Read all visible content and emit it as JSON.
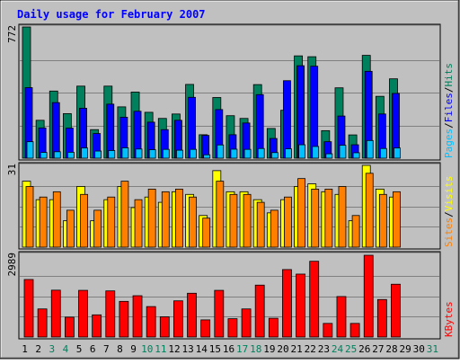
{
  "title": "Daily usage for February 2007",
  "colors": {
    "background": "#c0c0c0",
    "title": "#0000ff",
    "hits": "#00805c",
    "files": "#0000ff",
    "pages": "#00c0ff",
    "visits": "#ffff00",
    "sites": "#ff8000",
    "kbytes": "#ff0000",
    "day_label": "#000000",
    "weekend_label": "#00805c"
  },
  "chart_data": [
    {
      "type": "bar",
      "panel": "hits-files-pages",
      "ymax_label": "772",
      "ymax": 772,
      "legend": [
        {
          "text": "Pages",
          "key": "pages"
        },
        {
          "text": "/",
          "key": "sep"
        },
        {
          "text": "Files",
          "key": "files"
        },
        {
          "text": "/",
          "key": "sep"
        },
        {
          "text": "Hits",
          "key": "hits"
        }
      ],
      "categories": [
        "1",
        "2",
        "3",
        "4",
        "5",
        "6",
        "7",
        "8",
        "9",
        "10",
        "11",
        "12",
        "13",
        "14",
        "15",
        "16",
        "17",
        "18",
        "19",
        "20",
        "21",
        "22",
        "23",
        "24",
        "25",
        "26",
        "27",
        "28",
        "29",
        "30",
        "31"
      ],
      "series": [
        {
          "name": "Hits",
          "key": "hits",
          "values": [
            772,
            223,
            395,
            262,
            424,
            168,
            424,
            302,
            389,
            270,
            234,
            260,
            434,
            138,
            357,
            250,
            234,
            433,
            175,
            282,
            602,
            597,
            162,
            414,
            137,
            605,
            364,
            467,
            null,
            null,
            null
          ]
        },
        {
          "name": "Files",
          "key": "files",
          "values": [
            415,
            178,
            327,
            177,
            294,
            145,
            318,
            241,
            276,
            212,
            168,
            223,
            358,
            134,
            286,
            138,
            207,
            374,
            116,
            456,
            544,
            541,
            97,
            248,
            79,
            511,
            260,
            381,
            null,
            null,
            null
          ]
        },
        {
          "name": "Pages",
          "key": "pages",
          "values": [
            97,
            34,
            38,
            35,
            60,
            42,
            45,
            61,
            54,
            50,
            52,
            47,
            52,
            20,
            78,
            53,
            52,
            57,
            33,
            55,
            79,
            69,
            26,
            76,
            32,
            104,
            57,
            60,
            null,
            null,
            null
          ]
        }
      ]
    },
    {
      "type": "bar",
      "panel": "visits-sites",
      "ymax_label": "31",
      "ymax": 31,
      "legend": [
        {
          "text": "Sites",
          "key": "sites"
        },
        {
          "text": "/",
          "key": "sep"
        },
        {
          "text": "Visits",
          "key": "visits"
        }
      ],
      "categories": [
        "1",
        "2",
        "3",
        "4",
        "5",
        "6",
        "7",
        "8",
        "9",
        "10",
        "11",
        "12",
        "13",
        "14",
        "15",
        "16",
        "17",
        "18",
        "19",
        "20",
        "21",
        "22",
        "23",
        "24",
        "25",
        "26",
        "27",
        "28",
        "29",
        "30",
        "31"
      ],
      "series": [
        {
          "name": "Visits",
          "key": "visits",
          "values": [
            25,
            18,
            18,
            10,
            23,
            10,
            18,
            23,
            15,
            19,
            17,
            21,
            20,
            12,
            29,
            21,
            21,
            18,
            13,
            18,
            23,
            24,
            21,
            20,
            10,
            31,
            22,
            19,
            null,
            null,
            null
          ]
        },
        {
          "name": "Sites",
          "key": "sites",
          "values": [
            23,
            19,
            21,
            14,
            20,
            14,
            19,
            25,
            18,
            22,
            21,
            22,
            19,
            11,
            25,
            20,
            20,
            17,
            14,
            19,
            26,
            22,
            22,
            23,
            12,
            28,
            20,
            21,
            null,
            null,
            null
          ]
        }
      ]
    },
    {
      "type": "bar",
      "panel": "kbytes",
      "ymax_label": "2989",
      "ymax": 2989,
      "legend": [
        {
          "text": "KBytes",
          "key": "kbytes"
        }
      ],
      "categories": [
        "1",
        "2",
        "3",
        "4",
        "5",
        "6",
        "7",
        "8",
        "9",
        "10",
        "11",
        "12",
        "13",
        "14",
        "15",
        "16",
        "17",
        "18",
        "19",
        "20",
        "21",
        "22",
        "23",
        "24",
        "25",
        "26",
        "27",
        "28",
        "29",
        "30",
        "31"
      ],
      "series": [
        {
          "name": "KBytes",
          "key": "kbytes",
          "values": [
            2103,
            1027,
            1713,
            726,
            1706,
            811,
            1686,
            1303,
            1510,
            1113,
            739,
            1323,
            1600,
            627,
            1706,
            670,
            1027,
            1897,
            686,
            2466,
            2300,
            2769,
            498,
            1480,
            498,
            2989,
            1371,
            1930,
            null,
            null,
            null
          ]
        }
      ]
    }
  ],
  "x_axis": {
    "labels": [
      "1",
      "2",
      "3",
      "4",
      "5",
      "6",
      "7",
      "8",
      "9",
      "10",
      "11",
      "12",
      "13",
      "14",
      "15",
      "16",
      "17",
      "18",
      "19",
      "20",
      "21",
      "22",
      "23",
      "24",
      "25",
      "26",
      "27",
      "28",
      "29",
      "30",
      "31"
    ],
    "weekend": [
      false,
      false,
      true,
      true,
      false,
      false,
      false,
      false,
      false,
      true,
      true,
      false,
      false,
      false,
      false,
      false,
      true,
      true,
      false,
      false,
      false,
      false,
      false,
      true,
      true,
      false,
      false,
      false,
      false,
      false,
      true
    ]
  }
}
